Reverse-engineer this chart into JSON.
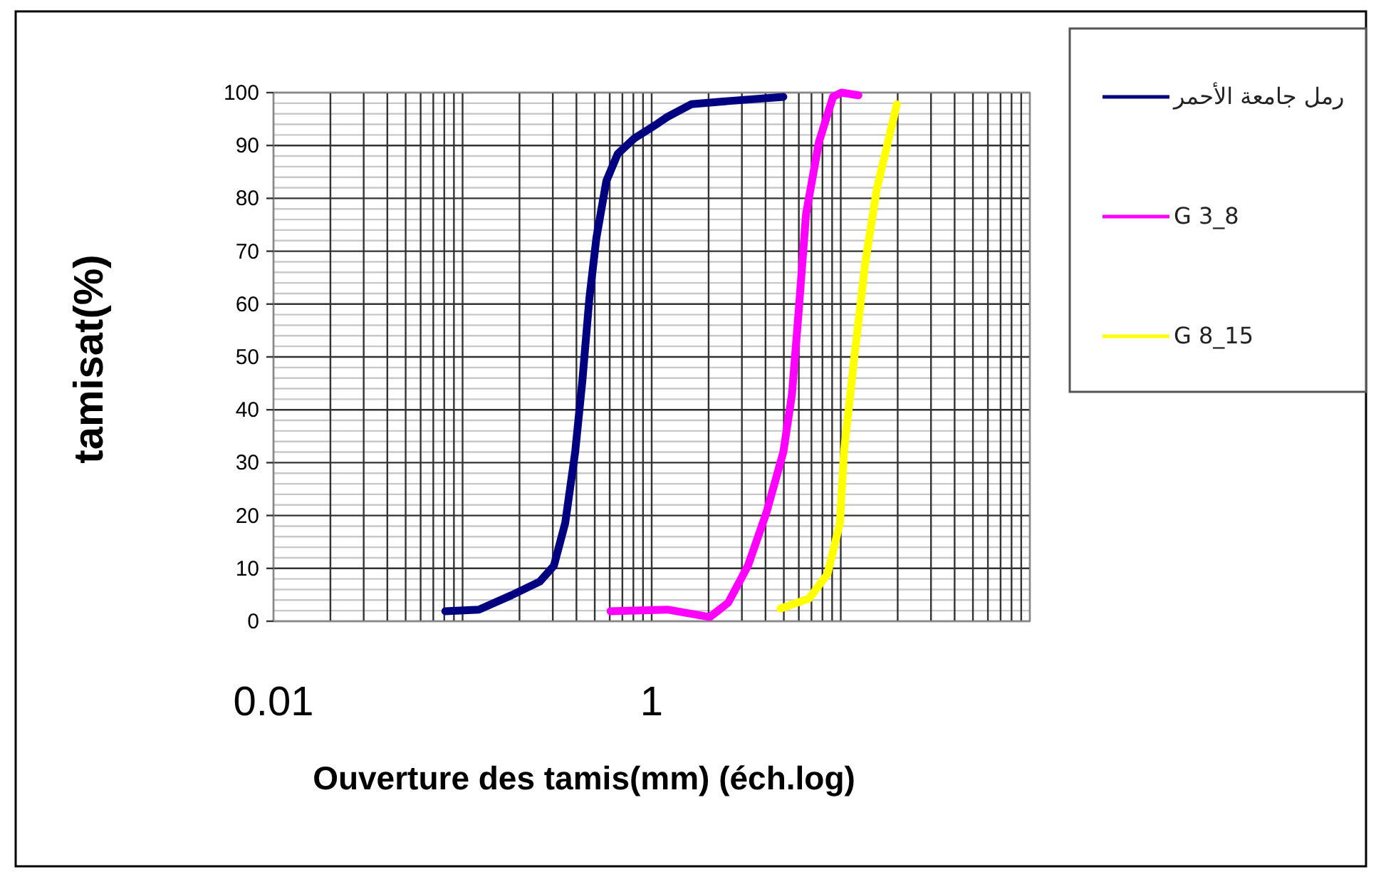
{
  "chart_data": {
    "type": "line",
    "xlabel": "Ouverture des tamis(mm) (éch.log)",
    "ylabel": "tamisat(%)",
    "log": "x",
    "xlim": [
      0.01,
      100
    ],
    "xticks": [
      0.01,
      1
    ],
    "ylim": [
      0,
      100
    ],
    "yticks": [
      0,
      10,
      20,
      30,
      40,
      50,
      60,
      70,
      80,
      90,
      100
    ],
    "grid": true,
    "legend": "right",
    "marker": "none",
    "line_style": "solid",
    "series": [
      {
        "name": "رمل جامعة الأحمر",
        "color": "#000080",
        "x": [
          0.081,
          0.122,
          0.181,
          0.256,
          0.304,
          0.349,
          0.394,
          0.43,
          0.468,
          0.51,
          0.576,
          0.661,
          0.813,
          1.07,
          1.21,
          1.62,
          2.54,
          4.97
        ],
        "values": [
          1.9,
          2.2,
          4.9,
          7.5,
          10.5,
          18.6,
          32,
          45.5,
          61,
          72.5,
          83.3,
          88.4,
          91.4,
          94.1,
          95.4,
          97.8,
          98.4,
          99.2
        ]
      },
      {
        "name": "G 3_8",
        "color": "#ff00ff",
        "x": [
          0.606,
          1.21,
          2.03,
          2.54,
          3.23,
          4.04,
          4.97,
          5.52,
          6.0,
          6.55,
          7.66,
          9.1,
          10.1,
          12.4
        ],
        "values": [
          1.9,
          2.2,
          0.8,
          3.5,
          10.5,
          20.5,
          32,
          42.9,
          59,
          77,
          90.6,
          99.2,
          100,
          99.5
        ]
      },
      {
        "name": "G 8_15",
        "color": "#ffff00",
        "x": [
          4.8,
          6.8,
          8.5,
          9.9,
          10.4,
          11.8,
          13.5,
          15.5,
          19.8
        ],
        "values": [
          2.4,
          4.3,
          8.9,
          18.6,
          32,
          50,
          68,
          81.7,
          97.8
        ]
      }
    ]
  }
}
